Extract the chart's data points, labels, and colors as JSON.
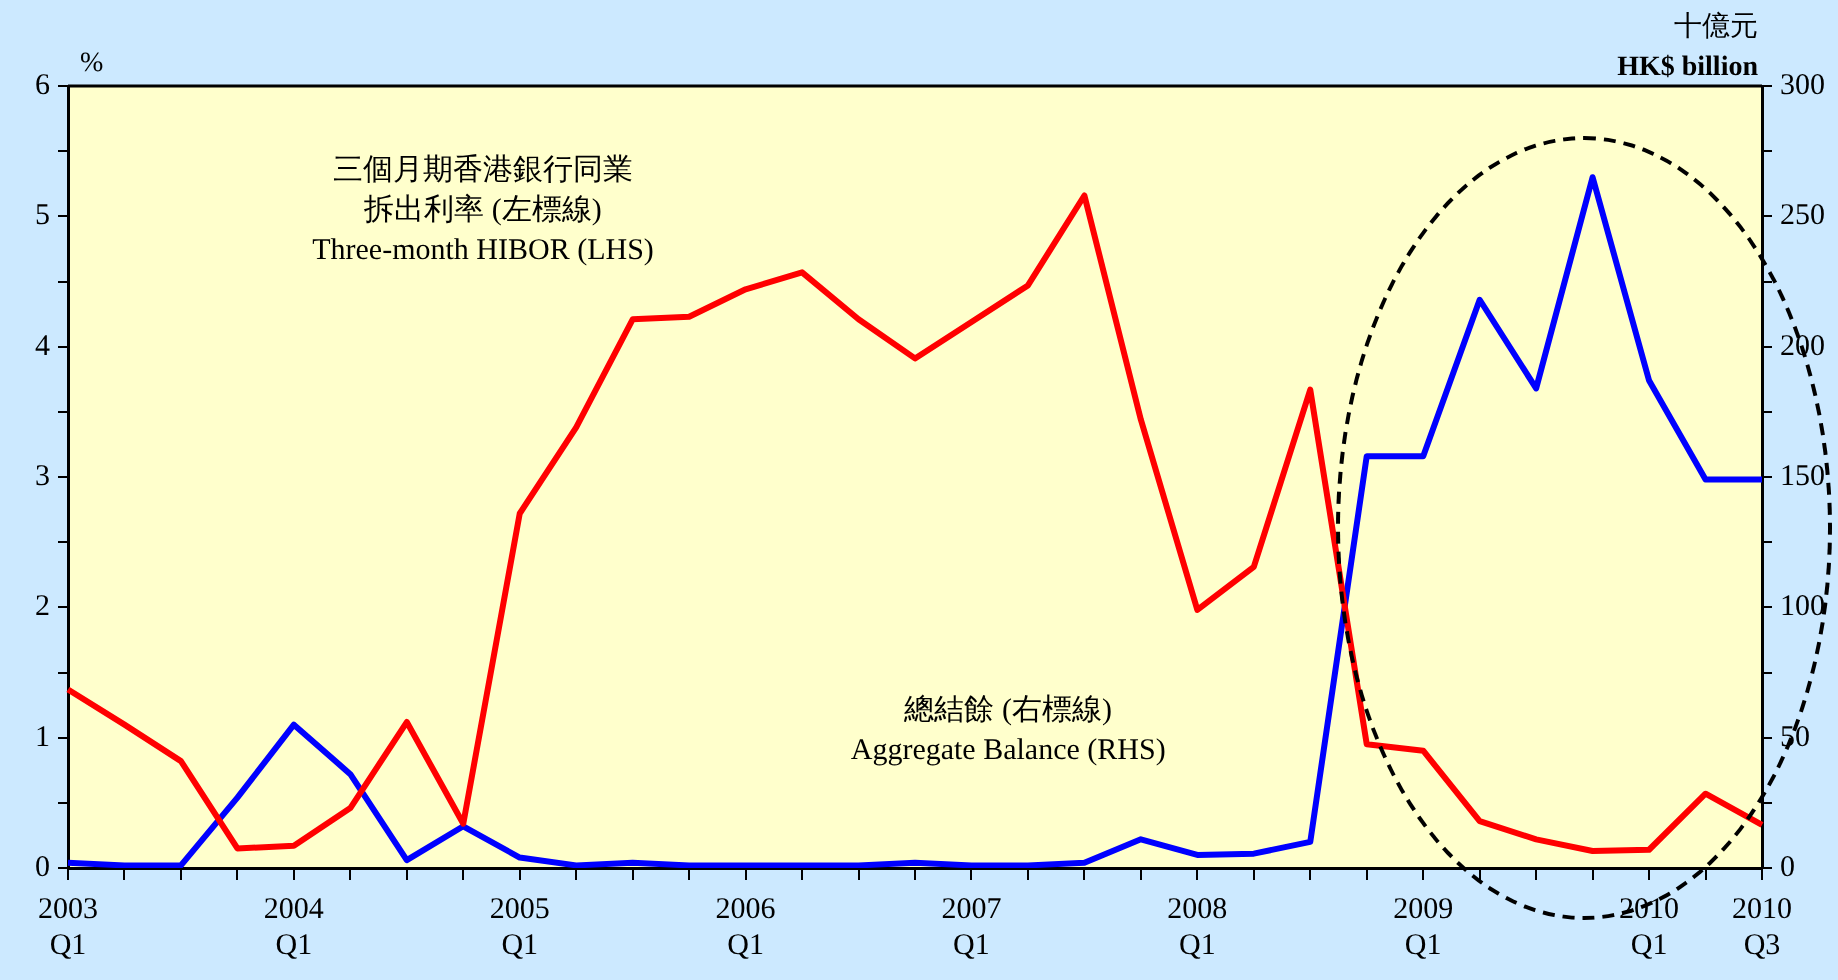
{
  "chart_data": {
    "type": "line",
    "ylabel": "%",
    "y2label": "十億元\nHK$ billion",
    "categories": [
      "2003\nQ1",
      null,
      null,
      null,
      "2004\nQ1",
      null,
      null,
      null,
      "2005\nQ1",
      null,
      null,
      null,
      "2006\nQ1",
      null,
      null,
      null,
      "2007\nQ1",
      null,
      null,
      null,
      "2008\nQ1",
      null,
      null,
      null,
      "2009\nQ1",
      null,
      null,
      null,
      "2010\nQ1",
      null,
      "2010\nQ3"
    ],
    "series": [
      {
        "name": "三個月期香港銀行同業拆出利率 (左標線)\nThree-month HIBOR (LHS)",
        "color": "#ff0000",
        "values": [
          1.37,
          1.1,
          0.82,
          0.15,
          0.17,
          0.46,
          1.12,
          0.34,
          2.72,
          3.38,
          4.21,
          4.23,
          4.44,
          4.57,
          4.21,
          3.91,
          4.19,
          4.47,
          5.16,
          3.44,
          1.98,
          2.31,
          3.67,
          0.95,
          0.9,
          0.36,
          0.22,
          0.13,
          0.14,
          0.57,
          0.33
        ]
      },
      {
        "name": "總結餘 (右標線)\nAggregate Balance (RHS)",
        "color": "#0000ff",
        "axis": "y2",
        "values": [
          2,
          1,
          1,
          27,
          55,
          36,
          3,
          16,
          4,
          1,
          2,
          1,
          1,
          1,
          1,
          2,
          1,
          1,
          2,
          11,
          5,
          5.5,
          10,
          158,
          158,
          218,
          184,
          265,
          187,
          149,
          149
        ]
      }
    ],
    "ylim": [
      0,
      6
    ],
    "yticks": [
      0,
      {
        "value": 0.5,
        "label": null
      },
      1,
      {
        "value": 1.5,
        "label": null
      },
      2,
      {
        "value": 2.5,
        "label": null
      },
      3,
      {
        "value": 3.5,
        "label": null
      },
      4,
      {
        "value": 4.5,
        "label": null
      },
      5,
      {
        "value": 5.5,
        "label": null
      },
      6
    ],
    "y2lim": [
      0,
      300
    ],
    "y2ticks": [
      0,
      {
        "value": 25,
        "label": null
      },
      50,
      {
        "value": 75,
        "label": null
      },
      100,
      {
        "value": 125,
        "label": null
      },
      150,
      {
        "value": 175,
        "label": null
      },
      200,
      {
        "value": 225,
        "label": null
      },
      250,
      {
        "value": 275,
        "label": null
      },
      300
    ],
    "grid": false,
    "legend": false,
    "marker": "none",
    "line_style": "solid"
  }
}
